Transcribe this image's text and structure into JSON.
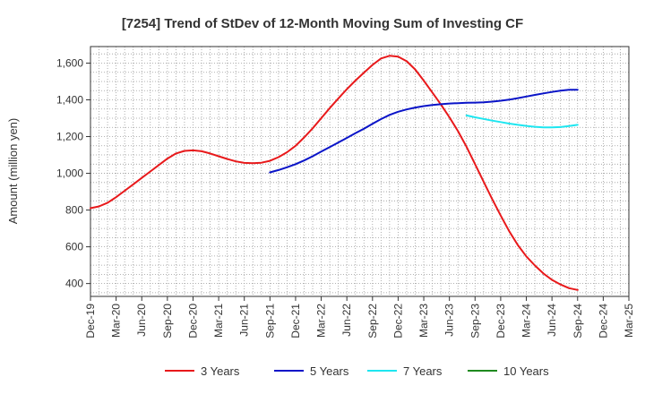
{
  "chart_data": {
    "type": "line",
    "title": "[7254]  Trend of StDev of 12-Month Moving Sum of Investing CF",
    "ylabel": "Amount (million yen)",
    "xlabel": "",
    "ylim": [
      330,
      1690
    ],
    "yticks": [
      400,
      600,
      800,
      1000,
      1200,
      1400,
      1600
    ],
    "ytick_labels": [
      "400",
      "600",
      "800",
      "1,000",
      "1,200",
      "1,400",
      "1,600"
    ],
    "xlim": [
      "2019-12",
      "2025-03"
    ],
    "xtick_labels": [
      "Dec-19",
      "Mar-20",
      "Jun-20",
      "Sep-20",
      "Dec-20",
      "Mar-21",
      "Jun-21",
      "Sep-21",
      "Dec-21",
      "Mar-22",
      "Jun-22",
      "Sep-22",
      "Dec-22",
      "Mar-23",
      "Jun-23",
      "Sep-23",
      "Dec-23",
      "Mar-24",
      "Jun-24",
      "Sep-24",
      "Dec-24",
      "Mar-25"
    ],
    "grid": true,
    "legend_position": "bottom",
    "series": [
      {
        "name": "3 Years",
        "color": "#e8191b",
        "x": [
          "2019-12",
          "2020-01",
          "2020-02",
          "2020-03",
          "2020-04",
          "2020-05",
          "2020-06",
          "2020-07",
          "2020-08",
          "2020-09",
          "2020-10",
          "2020-11",
          "2020-12",
          "2021-01",
          "2021-02",
          "2021-03",
          "2021-04",
          "2021-05",
          "2021-06",
          "2021-07",
          "2021-08",
          "2021-09",
          "2021-10",
          "2021-11",
          "2021-12",
          "2022-01",
          "2022-02",
          "2022-03",
          "2022-04",
          "2022-05",
          "2022-06",
          "2022-07",
          "2022-08",
          "2022-09",
          "2022-10",
          "2022-11",
          "2022-12",
          "2023-01",
          "2023-02",
          "2023-03",
          "2023-04",
          "2023-05",
          "2023-06",
          "2023-07",
          "2023-08",
          "2023-09",
          "2023-10",
          "2023-11",
          "2023-12",
          "2024-01",
          "2024-02",
          "2024-03",
          "2024-04",
          "2024-05",
          "2024-06",
          "2024-07",
          "2024-08",
          "2024-09"
        ],
        "values": [
          810,
          820,
          840,
          870,
          905,
          940,
          975,
          1010,
          1045,
          1080,
          1108,
          1122,
          1125,
          1120,
          1108,
          1093,
          1078,
          1065,
          1057,
          1055,
          1058,
          1068,
          1088,
          1115,
          1150,
          1195,
          1245,
          1300,
          1355,
          1408,
          1458,
          1505,
          1548,
          1590,
          1625,
          1640,
          1635,
          1610,
          1565,
          1505,
          1440,
          1375,
          1305,
          1230,
          1145,
          1050,
          955,
          860,
          770,
          685,
          610,
          548,
          498,
          455,
          420,
          395,
          375,
          365
        ]
      },
      {
        "name": "5 Years",
        "color": "#0a14c8",
        "x": [
          "2021-09",
          "2021-10",
          "2021-11",
          "2021-12",
          "2022-01",
          "2022-02",
          "2022-03",
          "2022-04",
          "2022-05",
          "2022-06",
          "2022-07",
          "2022-08",
          "2022-09",
          "2022-10",
          "2022-11",
          "2022-12",
          "2023-01",
          "2023-02",
          "2023-03",
          "2023-04",
          "2023-05",
          "2023-06",
          "2023-07",
          "2023-08",
          "2023-09",
          "2023-10",
          "2023-11",
          "2023-12",
          "2024-01",
          "2024-02",
          "2024-03",
          "2024-04",
          "2024-05",
          "2024-06",
          "2024-07",
          "2024-08",
          "2024-09"
        ],
        "values": [
          1005,
          1018,
          1033,
          1050,
          1070,
          1093,
          1118,
          1143,
          1168,
          1193,
          1218,
          1243,
          1270,
          1295,
          1318,
          1335,
          1348,
          1358,
          1366,
          1372,
          1376,
          1380,
          1382,
          1384,
          1385,
          1387,
          1390,
          1395,
          1401,
          1409,
          1418,
          1427,
          1435,
          1443,
          1450,
          1455,
          1455
        ]
      },
      {
        "name": "7 Years",
        "color": "#1ee6f0",
        "x": [
          "2023-08",
          "2023-09",
          "2023-10",
          "2023-11",
          "2023-12",
          "2024-01",
          "2024-02",
          "2024-03",
          "2024-04",
          "2024-05",
          "2024-06",
          "2024-07",
          "2024-08",
          "2024-09"
        ],
        "values": [
          1315,
          1305,
          1296,
          1287,
          1279,
          1271,
          1264,
          1258,
          1253,
          1250,
          1250,
          1252,
          1257,
          1264
        ]
      },
      {
        "name": "10 Years",
        "color": "#1f8a1f",
        "x": [],
        "values": []
      }
    ]
  }
}
